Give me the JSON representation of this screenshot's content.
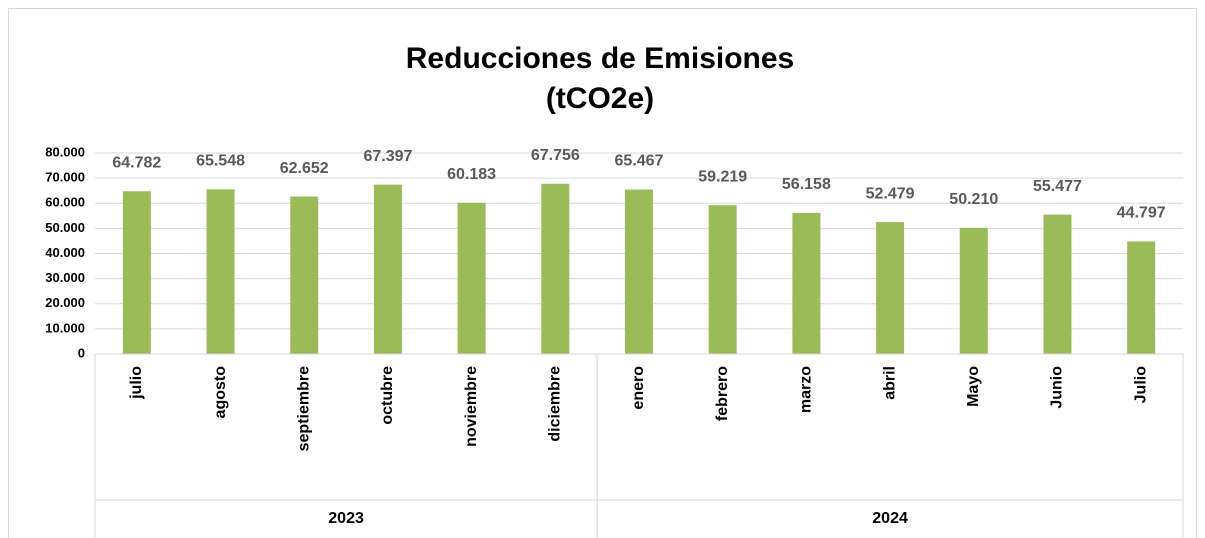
{
  "chart_data": {
    "type": "bar",
    "title": [
      "Reducciones de Emisiones",
      "(tCO2e)"
    ],
    "category_groups": [
      {
        "name": "2023",
        "categories": [
          "julio",
          "agosto",
          "septiembre",
          "octubre",
          "noviembre",
          "diciembre"
        ]
      },
      {
        "name": "2024",
        "categories": [
          "enero",
          "febrero",
          "marzo",
          "abril",
          "Mayo",
          "Junio",
          "Julio"
        ]
      }
    ],
    "values": [
      64782,
      65548,
      62652,
      67397,
      60183,
      67756,
      65467,
      59219,
      56158,
      52479,
      50210,
      55477,
      44797
    ],
    "value_labels": [
      "64.782",
      "65.548",
      "62.652",
      "67.397",
      "60.183",
      "67.756",
      "65.467",
      "59.219",
      "56.158",
      "52.479",
      "50.210",
      "55.477",
      "44.797"
    ],
    "color": "#9bbb59",
    "ylim": [
      0,
      80000
    ],
    "yticks": [
      0,
      {
        "value": 10000,
        "label": "10.000"
      },
      {
        "value": 20000,
        "label": "20.000"
      },
      {
        "value": 30000,
        "label": "30.000"
      },
      {
        "value": 40000,
        "label": "40.000"
      },
      {
        "value": 50000,
        "label": "50.000"
      },
      {
        "value": 60000,
        "label": "60.000"
      },
      {
        "value": 70000,
        "label": "70.000"
      },
      {
        "value": 80000,
        "label": "80.000"
      }
    ],
    "grid": true
  }
}
